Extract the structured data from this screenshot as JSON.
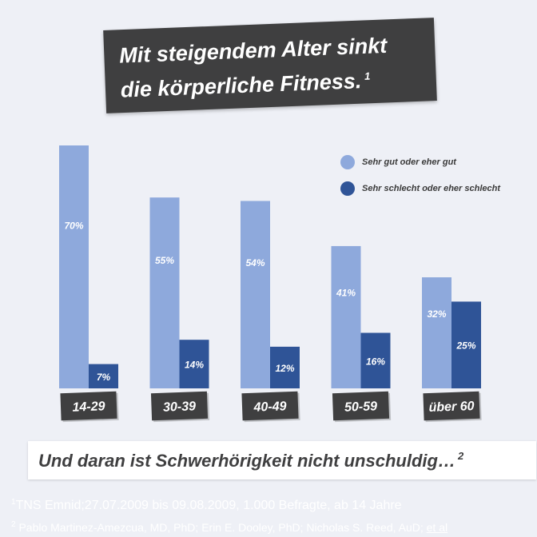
{
  "header": {
    "title_line1": "Mit steigendem Alter sinkt",
    "title_line2": "die körperliche Fitness.",
    "title_note": "1"
  },
  "chart_data": {
    "type": "bar",
    "categories": [
      "14-29",
      "30-39",
      "40-49",
      "50-59",
      "über 60"
    ],
    "series": [
      {
        "name": "Sehr gut oder eher gut",
        "values": [
          70,
          55,
          54,
          41,
          32
        ],
        "color": "#8ea9dc"
      },
      {
        "name": "Sehr schlecht oder eher schlecht",
        "values": [
          7,
          14,
          12,
          16,
          25
        ],
        "color": "#2f5497"
      }
    ],
    "value_suffix": "%",
    "ylim": [
      0,
      70
    ],
    "legend_position": "top-right",
    "grid": false
  },
  "subtitle": {
    "text": "Und daran ist Schwerhörigkeit nicht unschuldig…",
    "note": "2"
  },
  "footnotes": {
    "f1_num": "1",
    "f1_text": "TNS Emnid;27.07.2009 bis 09.08.2009, 1.000 Befragte, ab 14 Jahre",
    "f2_num": "2",
    "f2_text": "Pablo Martinez-Amezcua, MD, PhD; Erin E. Dooley, PhD; Nicholas S. Reed, AuD;",
    "f2_link": "et al"
  }
}
